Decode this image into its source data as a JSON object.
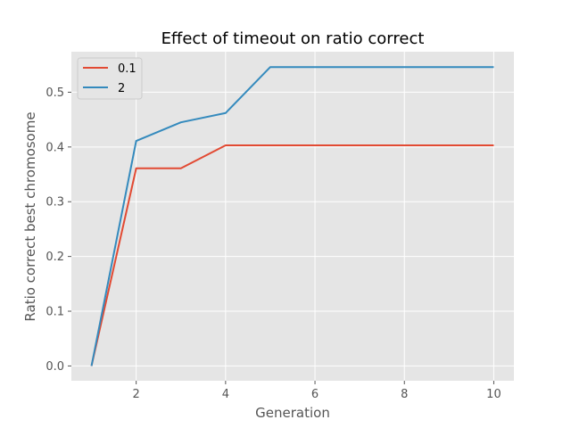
{
  "chart_data": {
    "type": "line",
    "title": "Effect of timeout on ratio correct",
    "xlabel": "Generation",
    "ylabel": "Ratio correct best chromosome",
    "x": [
      1,
      2,
      3,
      4,
      5,
      6,
      7,
      8,
      9,
      10
    ],
    "xlim": [
      0.55,
      10.45
    ],
    "ylim": [
      -0.027,
      0.574
    ],
    "xticks": [
      2,
      4,
      6,
      8,
      10
    ],
    "yticks": [
      0.0,
      0.1,
      0.2,
      0.3,
      0.4,
      0.5
    ],
    "xtick_labels": [
      "2",
      "4",
      "6",
      "8",
      "10"
    ],
    "ytick_labels": [
      "0.0",
      "0.1",
      "0.2",
      "0.3",
      "0.4",
      "0.5"
    ],
    "grid": true,
    "legend_position": "top-left",
    "series": [
      {
        "name": "0.1",
        "color": "#e24a33",
        "values": [
          0.0,
          0.361,
          0.361,
          0.403,
          0.403,
          0.403,
          0.403,
          0.403,
          0.403,
          0.403
        ]
      },
      {
        "name": "2",
        "color": "#348abd",
        "values": [
          0.0,
          0.411,
          0.445,
          0.462,
          0.546,
          0.546,
          0.546,
          0.546,
          0.546,
          0.546
        ]
      }
    ]
  }
}
